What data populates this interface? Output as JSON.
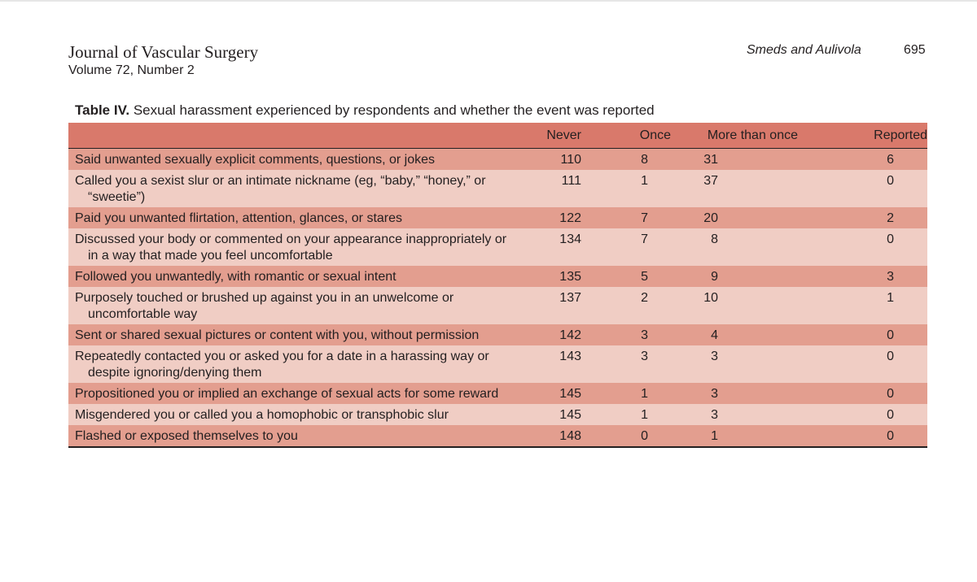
{
  "header": {
    "journal_title": "Journal of Vascular Surgery",
    "volume": "Volume 72, Number 2",
    "authors": "Smeds and Aulivola",
    "page_number": "695"
  },
  "table": {
    "caption_label": "Table IV.",
    "caption_text": "Sexual harassment experienced by respondents and whether the event was reported",
    "columns": [
      "",
      "Never",
      "Once",
      "More than once",
      "Reported"
    ],
    "rows": [
      {
        "item": "Said unwanted sexually explicit comments, questions, or jokes",
        "never": "110",
        "once": "8",
        "more": "31",
        "reported": "6"
      },
      {
        "item": "Called you a sexist slur or an intimate nickname (eg, “baby,” “honey,” or “sweetie”)",
        "never": "111",
        "once": "1",
        "more": "37",
        "reported": "0"
      },
      {
        "item": "Paid you unwanted flirtation, attention, glances, or stares",
        "never": "122",
        "once": "7",
        "more": "20",
        "reported": "2"
      },
      {
        "item": "Discussed your body or commented on your appearance inappropriately or in a way that made you feel uncomfortable",
        "never": "134",
        "once": "7",
        "more": "8",
        "reported": "0"
      },
      {
        "item": "Followed you unwantedly, with romantic or sexual intent",
        "never": "135",
        "once": "5",
        "more": "9",
        "reported": "3"
      },
      {
        "item": "Purposely touched or brushed up against you in an unwelcome or uncomfortable way",
        "never": "137",
        "once": "2",
        "more": "10",
        "reported": "1"
      },
      {
        "item": "Sent or shared sexual pictures or content with you, without permission",
        "never": "142",
        "once": "3",
        "more": "4",
        "reported": "0"
      },
      {
        "item": "Repeatedly contacted you or asked you for a date in a harassing way or despite ignoring/denying them",
        "never": "143",
        "once": "3",
        "more": "3",
        "reported": "0"
      },
      {
        "item": "Propositioned you or implied an exchange of sexual acts for some reward",
        "never": "145",
        "once": "1",
        "more": "3",
        "reported": "0"
      },
      {
        "item": "Misgendered you or called you a homophobic or transphobic slur",
        "never": "145",
        "once": "1",
        "more": "3",
        "reported": "0"
      },
      {
        "item": "Flashed or exposed themselves to you",
        "never": "148",
        "once": "0",
        "more": "1",
        "reported": "0"
      }
    ]
  },
  "colors": {
    "header_row": "#d9796b",
    "odd_row": "#e39e8f",
    "even_row": "#f0cdc4",
    "text": "#231f20"
  }
}
